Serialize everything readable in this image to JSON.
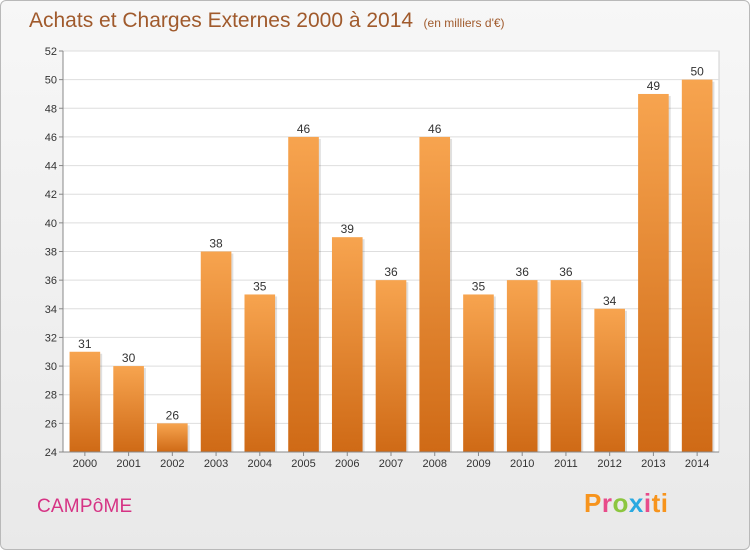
{
  "title": "Achats et Charges Externes 2000 à 2014",
  "subtitle": "(en milliers d'€)",
  "commune": "CAMPôME",
  "logo_text": "Proxiti",
  "colors": {
    "bar_light": "#f7a44f",
    "bar_dark": "#cf6a16",
    "title": "#a05a2c",
    "commune": "#d63384"
  },
  "chart_data": {
    "type": "bar",
    "title": "Achats et Charges Externes 2000 à 2014",
    "subtitle": "(en milliers d'€)",
    "categories": [
      "2000",
      "2001",
      "2002",
      "2003",
      "2004",
      "2005",
      "2006",
      "2007",
      "2008",
      "2009",
      "2010",
      "2011",
      "2012",
      "2013",
      "2014"
    ],
    "values": [
      31,
      30,
      26,
      38,
      35,
      46,
      39,
      36,
      46,
      35,
      36,
      36,
      34,
      49,
      50
    ],
    "ylim": [
      24,
      52
    ],
    "yticks": [
      24,
      26,
      28,
      30,
      32,
      34,
      36,
      38,
      40,
      42,
      44,
      46,
      48,
      50,
      52
    ],
    "grid": true,
    "data_labels": true
  }
}
